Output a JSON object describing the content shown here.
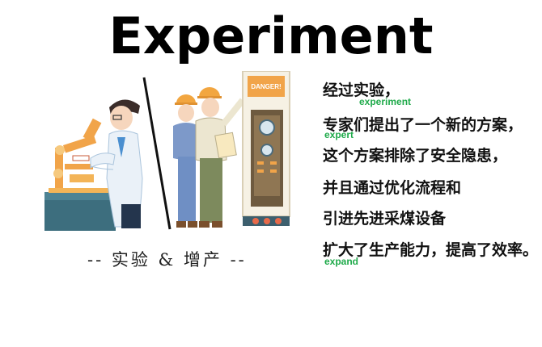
{
  "title": "Experiment",
  "caption": "-- 实验 & 增产 --",
  "sign": "DANGER!",
  "lines": [
    "经过实验，",
    "专家们提出了一个新的方案，",
    "这个方案排除了安全隐患，",
    "并且通过优化流程和",
    "引进先进采煤设备",
    "扩大了生产能力，提高了效率。"
  ],
  "notes": {
    "experiment": "experiment",
    "expert": "expert",
    "expand": "expand"
  },
  "colors": {
    "note": "#1faa4a",
    "helmet": "#f2a640",
    "machine": "#f1a449"
  }
}
